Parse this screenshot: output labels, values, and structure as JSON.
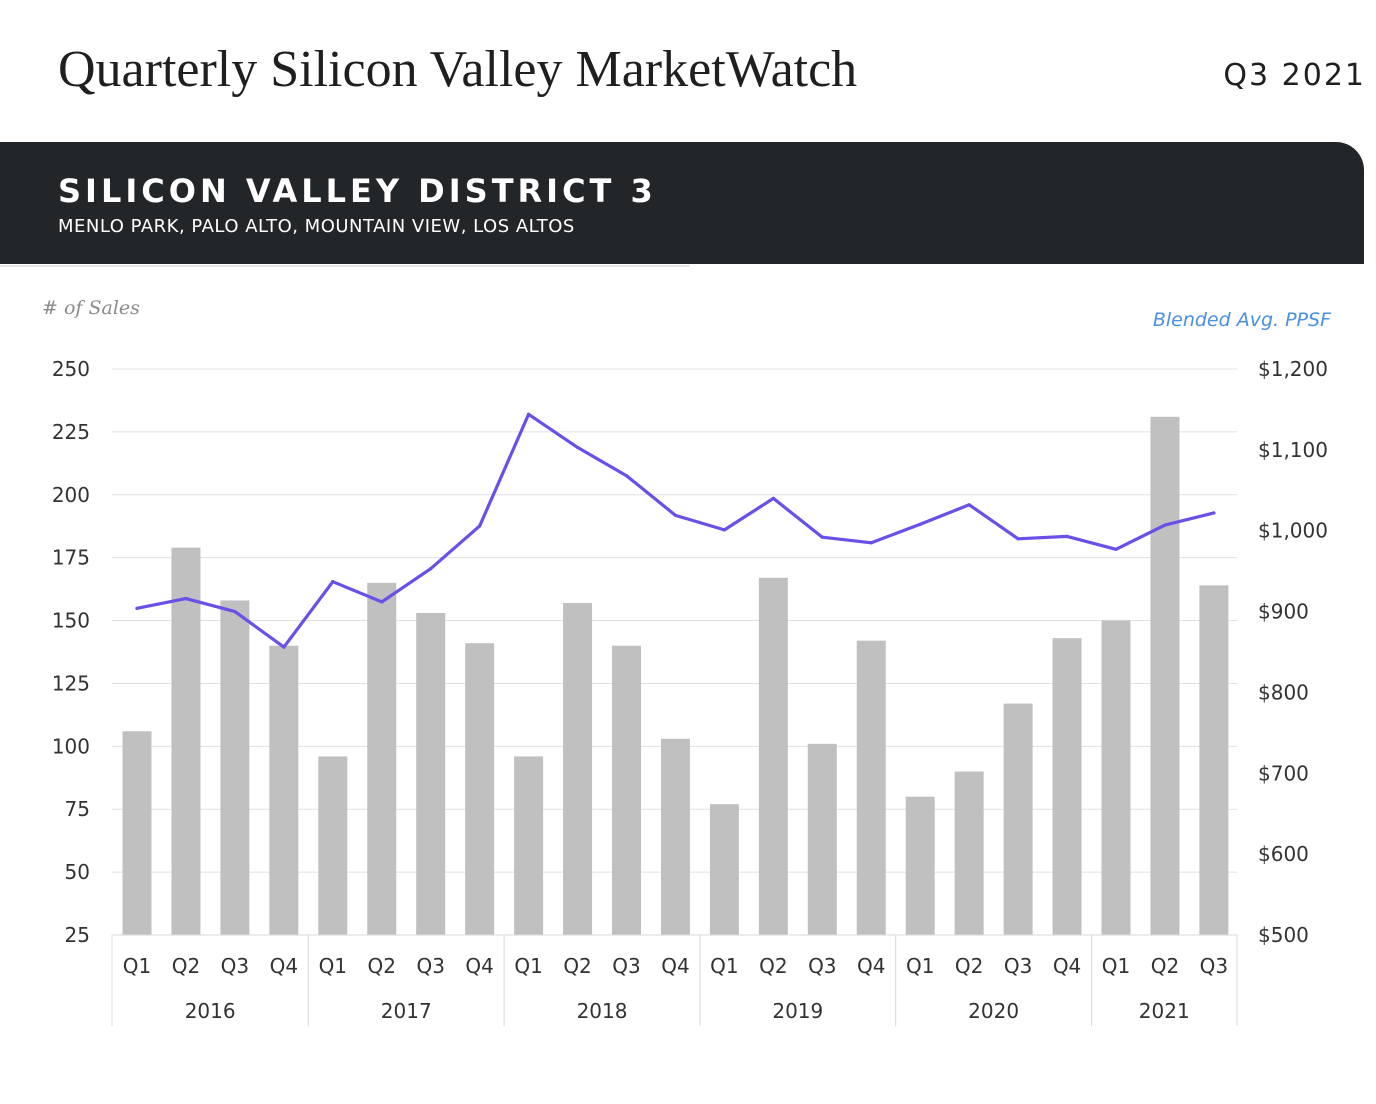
{
  "header": {
    "title": "Quarterly Silicon Valley MarketWatch",
    "period": "Q3 2021"
  },
  "banner": {
    "district": "SILICON VALLEY DISTRICT 3",
    "cities": "MENLO PARK, PALO ALTO, MOUNTAIN VIEW, LOS ALTOS"
  },
  "colors": {
    "bar": "#c0c0c0",
    "line": "#6b4fe8",
    "grid": "#e0e0e0",
    "banner": "#232629",
    "right_axis_title": "#4a90e2"
  },
  "chart_data": {
    "type": "bar",
    "ylabel": "# of Sales",
    "y2label": "Blended Avg. PPSF",
    "ylim": [
      25,
      250
    ],
    "y2lim": [
      500,
      1200
    ],
    "yticks": [
      "250",
      "225",
      "200",
      "175",
      "150",
      "125",
      "100",
      "75",
      "50",
      "25"
    ],
    "y2ticks": [
      "$1,200",
      "$1,100",
      "$1,000",
      "$900",
      "$800",
      "$700",
      "$600",
      "$500"
    ],
    "grid": true,
    "categories": [
      "Q1",
      "Q2",
      "Q3",
      "Q4",
      "Q1",
      "Q2",
      "Q3",
      "Q4",
      "Q1",
      "Q2",
      "Q3",
      "Q4",
      "Q1",
      "Q2",
      "Q3",
      "Q4",
      "Q1",
      "Q2",
      "Q3",
      "Q4",
      "Q1",
      "Q2",
      "Q3"
    ],
    "years": [
      {
        "label": "2016",
        "count": 4
      },
      {
        "label": "2017",
        "count": 4
      },
      {
        "label": "2018",
        "count": 4
      },
      {
        "label": "2019",
        "count": 4
      },
      {
        "label": "2020",
        "count": 4
      },
      {
        "label": "2021",
        "count": 3
      }
    ],
    "series": [
      {
        "type": "bar",
        "axis": "left",
        "values": [
          106,
          179,
          158,
          140,
          96,
          165,
          153,
          141,
          96,
          157,
          140,
          103,
          77,
          167,
          101,
          142,
          80,
          90,
          117,
          143,
          150,
          231,
          164
        ]
      },
      {
        "type": "line",
        "axis": "right",
        "values": [
          904,
          916,
          900,
          856,
          937,
          912,
          953,
          1006,
          1144,
          1103,
          1068,
          1019,
          1001,
          1040,
          992,
          985,
          1008,
          1032,
          990,
          993,
          977,
          1007,
          1022
        ]
      }
    ]
  }
}
